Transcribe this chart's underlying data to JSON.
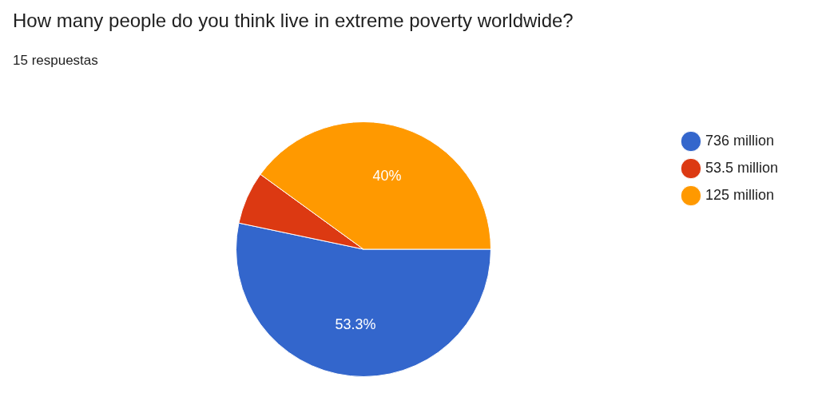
{
  "chart_data": {
    "type": "pie",
    "title": "How many people do you think live in extreme poverty worldwide?",
    "subtitle": "15 respuestas",
    "categories": [
      "736 million",
      "53.5 million",
      "125 million"
    ],
    "values": [
      53.3,
      6.7,
      40
    ],
    "colors": [
      "#3366cc",
      "#dc3912",
      "#ff9900"
    ],
    "value_labels": [
      "53.3%",
      null,
      "40%"
    ],
    "legend": "right"
  }
}
